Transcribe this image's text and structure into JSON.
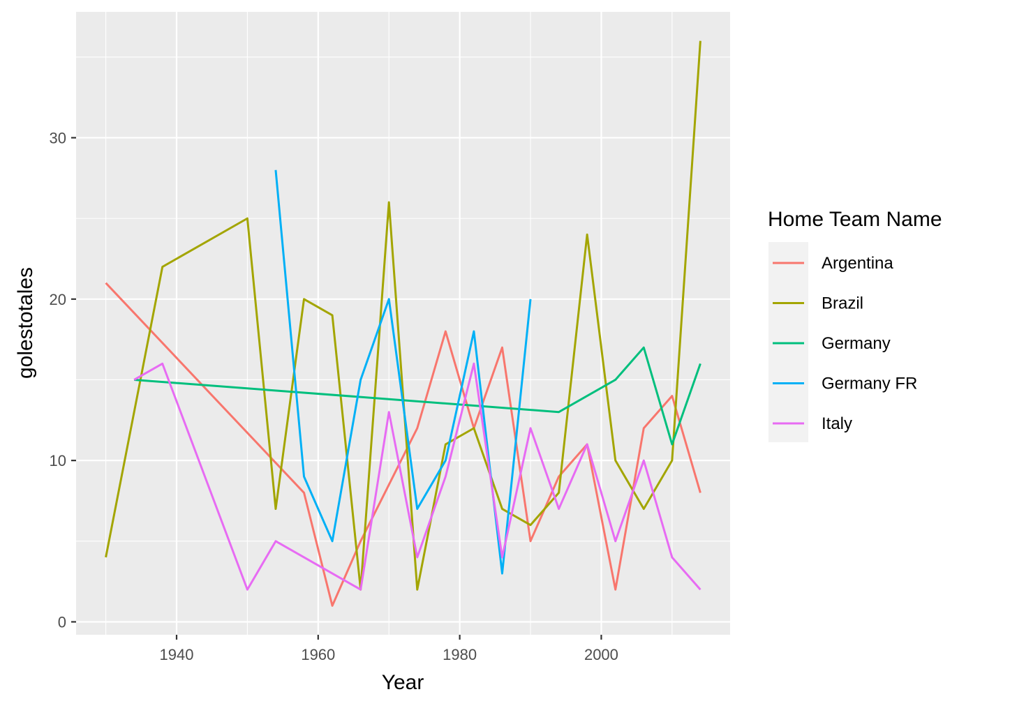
{
  "chart_data": {
    "type": "line",
    "title": "",
    "xlabel": "Year",
    "ylabel": "golestotales",
    "xlim": [
      1925.8,
      2018.2
    ],
    "ylim": [
      -0.8,
      37.8
    ],
    "x_ticks": [
      1940,
      1960,
      1980,
      2000
    ],
    "x_tick_labels": [
      "1940",
      "1960",
      "1980",
      "2000"
    ],
    "y_ticks": [
      0,
      10,
      20,
      30
    ],
    "y_tick_labels": [
      "0",
      "10",
      "20",
      "30"
    ],
    "grid": true,
    "legend": {
      "title": "Home Team Name",
      "position": "right"
    },
    "series": [
      {
        "name": "Argentina",
        "color": "#F8766D",
        "x": [
          1930,
          1958,
          1962,
          1966,
          1974,
          1978,
          1982,
          1986,
          1990,
          1994,
          1998,
          2002,
          2006,
          2010,
          2014
        ],
        "y": [
          21,
          8,
          1,
          5,
          12,
          18,
          12,
          17,
          5,
          9,
          11,
          2,
          12,
          14,
          8
        ]
      },
      {
        "name": "Brazil",
        "color": "#A3A500",
        "x": [
          1930,
          1938,
          1950,
          1954,
          1958,
          1962,
          1966,
          1970,
          1974,
          1978,
          1982,
          1986,
          1990,
          1994,
          1998,
          2002,
          2006,
          2010,
          2014
        ],
        "y": [
          4,
          22,
          25,
          7,
          20,
          19,
          2,
          26,
          2,
          11,
          12,
          7,
          6,
          8,
          24,
          10,
          7,
          10,
          36
        ]
      },
      {
        "name": "Germany",
        "color": "#00BF7D",
        "x": [
          1934,
          1994,
          2002,
          2006,
          2010,
          2014
        ],
        "y": [
          15,
          13,
          15,
          17,
          11,
          16
        ]
      },
      {
        "name": "Germany FR",
        "color": "#00B0F6",
        "x": [
          1954,
          1958,
          1962,
          1966,
          1970,
          1974,
          1978,
          1982,
          1986,
          1990
        ],
        "y": [
          28,
          9,
          5,
          15,
          20,
          7,
          10,
          18,
          3,
          20
        ]
      },
      {
        "name": "Italy",
        "color": "#E76BF3",
        "x": [
          1934,
          1938,
          1950,
          1954,
          1966,
          1970,
          1974,
          1978,
          1982,
          1986,
          1990,
          1994,
          1998,
          2002,
          2006,
          2010,
          2014
        ],
        "y": [
          15,
          16,
          2,
          5,
          2,
          13,
          4,
          9,
          16,
          4,
          12,
          7,
          11,
          5,
          10,
          4,
          2
        ]
      }
    ]
  }
}
